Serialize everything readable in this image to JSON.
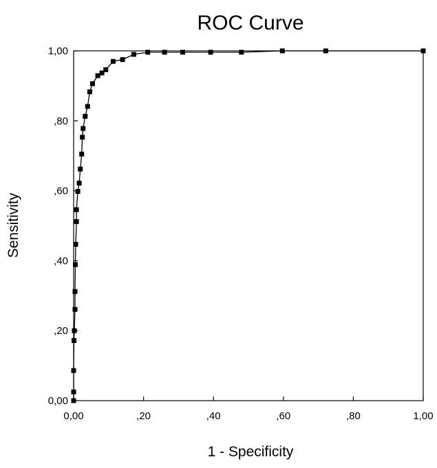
{
  "chart_data": {
    "type": "line",
    "title": "ROC Curve",
    "xlabel": "1 - Specificity",
    "ylabel": "Sensitivity",
    "xlim": [
      0,
      1
    ],
    "ylim": [
      0,
      1
    ],
    "x_ticks": [
      0,
      0.2,
      0.4,
      0.6,
      0.8,
      1.0
    ],
    "y_ticks": [
      0,
      0.2,
      0.4,
      0.6,
      0.8,
      1.0
    ],
    "x_tick_labels": [
      "0,00",
      ",20",
      ",40",
      ",60",
      ",80",
      "1,00"
    ],
    "y_tick_labels": [
      "0,00",
      ",20",
      ",40",
      ",60",
      ",80",
      "1,00"
    ],
    "grid": false,
    "legend": "none",
    "marker": "square",
    "color": "#000000",
    "series": [
      {
        "x": [
          0.0,
          0.0,
          0.0,
          0.001,
          0.002,
          0.004,
          0.004,
          0.005,
          0.006,
          0.008,
          0.008,
          0.012,
          0.016,
          0.019,
          0.023,
          0.025,
          0.027,
          0.033,
          0.04,
          0.046,
          0.054,
          0.069,
          0.081,
          0.092,
          0.113,
          0.14,
          0.172,
          0.212,
          0.26,
          0.312,
          0.392,
          0.48,
          0.597,
          0.721,
          1.0
        ],
        "y": [
          0.0,
          0.025,
          0.086,
          0.172,
          0.2,
          0.261,
          0.312,
          0.389,
          0.447,
          0.512,
          0.546,
          0.598,
          0.622,
          0.662,
          0.705,
          0.753,
          0.778,
          0.813,
          0.841,
          0.883,
          0.906,
          0.929,
          0.937,
          0.946,
          0.97,
          0.975,
          0.99,
          0.996,
          0.996,
          0.996,
          0.996,
          0.996,
          1.0,
          1.0,
          1.0
        ]
      }
    ]
  }
}
